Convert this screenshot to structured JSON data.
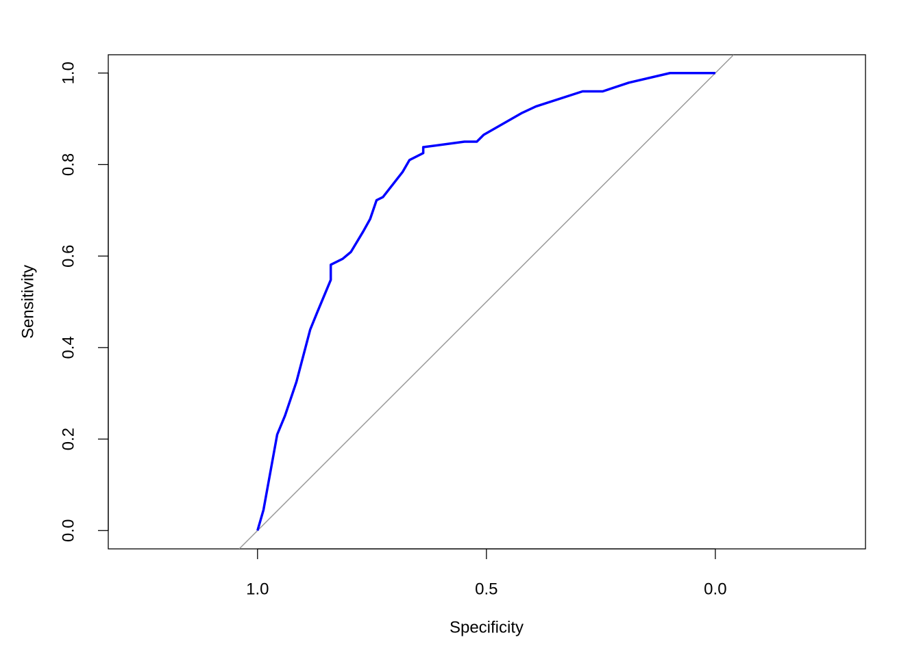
{
  "chart_data": {
    "type": "line",
    "xlabel": "Specificity",
    "ylabel": "Sensitivity",
    "x": [
      1.0,
      0.987,
      0.957,
      0.94,
      0.915,
      0.885,
      0.87,
      0.84,
      0.84,
      0.814,
      0.796,
      0.769,
      0.754,
      0.74,
      0.726,
      0.683,
      0.668,
      0.638,
      0.638,
      0.548,
      0.521,
      0.506,
      0.422,
      0.392,
      0.29,
      0.246,
      0.189,
      0.099,
      0.0
    ],
    "values": [
      0.0,
      0.045,
      0.21,
      0.251,
      0.325,
      0.439,
      0.476,
      0.548,
      0.581,
      0.594,
      0.609,
      0.654,
      0.681,
      0.722,
      0.729,
      0.784,
      0.81,
      0.825,
      0.838,
      0.85,
      0.85,
      0.865,
      0.913,
      0.927,
      0.96,
      0.96,
      0.979,
      1.0,
      1.0
    ],
    "color": "#0000ff",
    "xlim": [
      1.326,
      -0.328
    ],
    "xticks": [
      {
        "value": 1.0,
        "label": "1.0"
      },
      0.5,
      {
        "value": 0.0,
        "label": "0.0"
      }
    ],
    "ylim": [
      -0.04,
      1.04
    ],
    "yticks": [
      {
        "value": 0.0,
        "label": "0.0"
      },
      0.2,
      0.4,
      0.6,
      0.8,
      {
        "value": 1.0,
        "label": "1.0"
      }
    ],
    "diagonal": true
  }
}
